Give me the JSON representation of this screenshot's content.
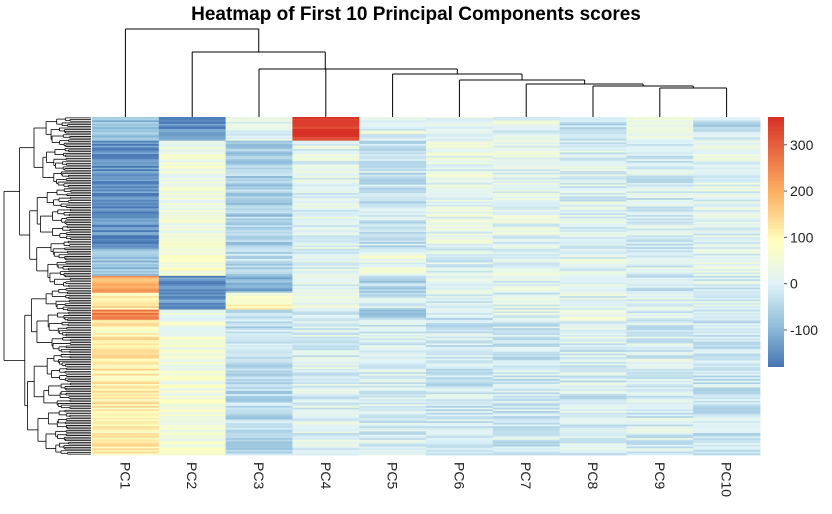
{
  "title": "Heatmap of First 10 Principal Components scores",
  "chart_data": {
    "type": "heatmap",
    "title": "Heatmap of First 10 Principal Components scores",
    "columns": [
      "PC1",
      "PC2",
      "PC3",
      "PC4",
      "PC5",
      "PC6",
      "PC7",
      "PC8",
      "PC9",
      "PC10"
    ],
    "row_count": 200,
    "row_labels_shown": false,
    "color_scale": {
      "min": -180,
      "max": 360,
      "stops": [
        {
          "value": -180,
          "color": "#4575b4"
        },
        {
          "value": -90,
          "color": "#91bfdb"
        },
        {
          "value": 0,
          "color": "#e0f3f8"
        },
        {
          "value": 90,
          "color": "#ffffbf"
        },
        {
          "value": 200,
          "color": "#fdae61"
        },
        {
          "value": 360,
          "color": "#d73027"
        }
      ]
    },
    "legend_ticks": [
      300,
      200,
      100,
      0,
      -100
    ],
    "legend_position": "right",
    "column_dendrogram": true,
    "row_dendrogram": true,
    "row_blocks": [
      {
        "rows": 14,
        "means": [
          -80,
          -150,
          10,
          360,
          10,
          10,
          10,
          -40,
          20,
          -30
        ]
      },
      {
        "rows": 64,
        "means": [
          -150,
          40,
          -60,
          10,
          -30,
          20,
          10,
          0,
          -10,
          10
        ]
      },
      {
        "rows": 16,
        "means": [
          -90,
          60,
          -40,
          10,
          30,
          0,
          10,
          10,
          0,
          10
        ]
      },
      {
        "rows": 10,
        "means": [
          200,
          -150,
          -100,
          10,
          -50,
          0,
          10,
          0,
          -20,
          0
        ]
      },
      {
        "rows": 10,
        "means": [
          120,
          -130,
          80,
          20,
          -20,
          0,
          0,
          0,
          0,
          0
        ]
      },
      {
        "rows": 6,
        "means": [
          250,
          40,
          -20,
          0,
          -70,
          -20,
          10,
          20,
          0,
          0
        ]
      },
      {
        "rows": 80,
        "means": [
          110,
          50,
          -40,
          0,
          -10,
          -20,
          -20,
          -10,
          -10,
          -20
        ]
      }
    ]
  }
}
